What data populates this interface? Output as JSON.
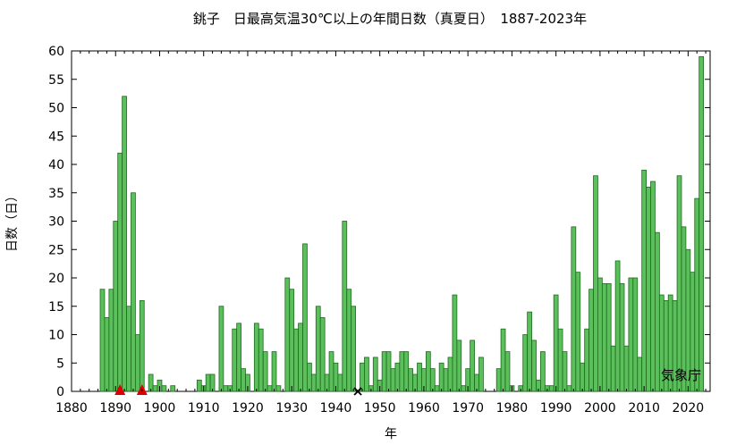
{
  "chart_data": {
    "type": "bar",
    "title": "銚子　日最高気温30℃以上の年間日数（真夏日）　1887-2023年",
    "xlabel": "年",
    "ylabel": "日数（日）",
    "credit": "気象庁",
    "xlim": [
      1880,
      2025
    ],
    "ylim": [
      0,
      60
    ],
    "xticks": [
      1880,
      1890,
      1900,
      1910,
      1920,
      1930,
      1940,
      1950,
      1960,
      1970,
      1980,
      1990,
      2000,
      2010,
      2020
    ],
    "yticks": [
      0,
      5,
      10,
      15,
      20,
      25,
      30,
      35,
      40,
      45,
      50,
      55,
      60
    ],
    "grid": false,
    "bar_color": "#5bbf5b",
    "bar_edge_color": "#1e6b1e",
    "marker_color": "#dd0000",
    "years": [
      1887,
      1888,
      1889,
      1890,
      1891,
      1892,
      1893,
      1894,
      1895,
      1896,
      1897,
      1898,
      1899,
      1900,
      1901,
      1902,
      1903,
      1904,
      1905,
      1906,
      1907,
      1908,
      1909,
      1910,
      1911,
      1912,
      1913,
      1914,
      1915,
      1916,
      1917,
      1918,
      1919,
      1920,
      1921,
      1922,
      1923,
      1924,
      1925,
      1926,
      1927,
      1928,
      1929,
      1930,
      1931,
      1932,
      1933,
      1934,
      1935,
      1936,
      1937,
      1938,
      1939,
      1940,
      1941,
      1942,
      1943,
      1944,
      1945,
      1946,
      1947,
      1948,
      1949,
      1950,
      1951,
      1952,
      1953,
      1954,
      1955,
      1956,
      1957,
      1958,
      1959,
      1960,
      1961,
      1962,
      1963,
      1964,
      1965,
      1966,
      1967,
      1968,
      1969,
      1970,
      1971,
      1972,
      1973,
      1974,
      1975,
      1976,
      1977,
      1978,
      1979,
      1980,
      1981,
      1982,
      1983,
      1984,
      1985,
      1986,
      1987,
      1988,
      1989,
      1990,
      1991,
      1992,
      1993,
      1994,
      1995,
      1996,
      1997,
      1998,
      1999,
      2000,
      2001,
      2002,
      2003,
      2004,
      2005,
      2006,
      2007,
      2008,
      2009,
      2010,
      2011,
      2012,
      2013,
      2014,
      2015,
      2016,
      2017,
      2018,
      2019,
      2020,
      2021,
      2022,
      2023
    ],
    "values": [
      18,
      13,
      18,
      30,
      42,
      52,
      15,
      35,
      10,
      16,
      0,
      3,
      1,
      2,
      1,
      0,
      1,
      0,
      0,
      0,
      0,
      0,
      2,
      1,
      3,
      3,
      0,
      15,
      1,
      1,
      11,
      12,
      4,
      3,
      0,
      12,
      11,
      7,
      1,
      7,
      1,
      0,
      20,
      18,
      11,
      12,
      26,
      5,
      3,
      15,
      13,
      3,
      7,
      5,
      3,
      30,
      18,
      15,
      0,
      5,
      6,
      1,
      6,
      2,
      7,
      7,
      4,
      5,
      7,
      7,
      4,
      3,
      5,
      4,
      7,
      4,
      1,
      5,
      4,
      6,
      17,
      9,
      1,
      4,
      9,
      3,
      6,
      0,
      0,
      0,
      4,
      11,
      7,
      1,
      0,
      1,
      10,
      14,
      9,
      2,
      7,
      1,
      1,
      17,
      11,
      7,
      1,
      29,
      21,
      5,
      11,
      18,
      38,
      20,
      19,
      19,
      8,
      23,
      19,
      8,
      20,
      20,
      6,
      39,
      36,
      37,
      28,
      17,
      16,
      17,
      16,
      38,
      29,
      25,
      21,
      34,
      59
    ],
    "missing_markers": [
      1891,
      1896
    ],
    "relocation_marker": 1945
  }
}
